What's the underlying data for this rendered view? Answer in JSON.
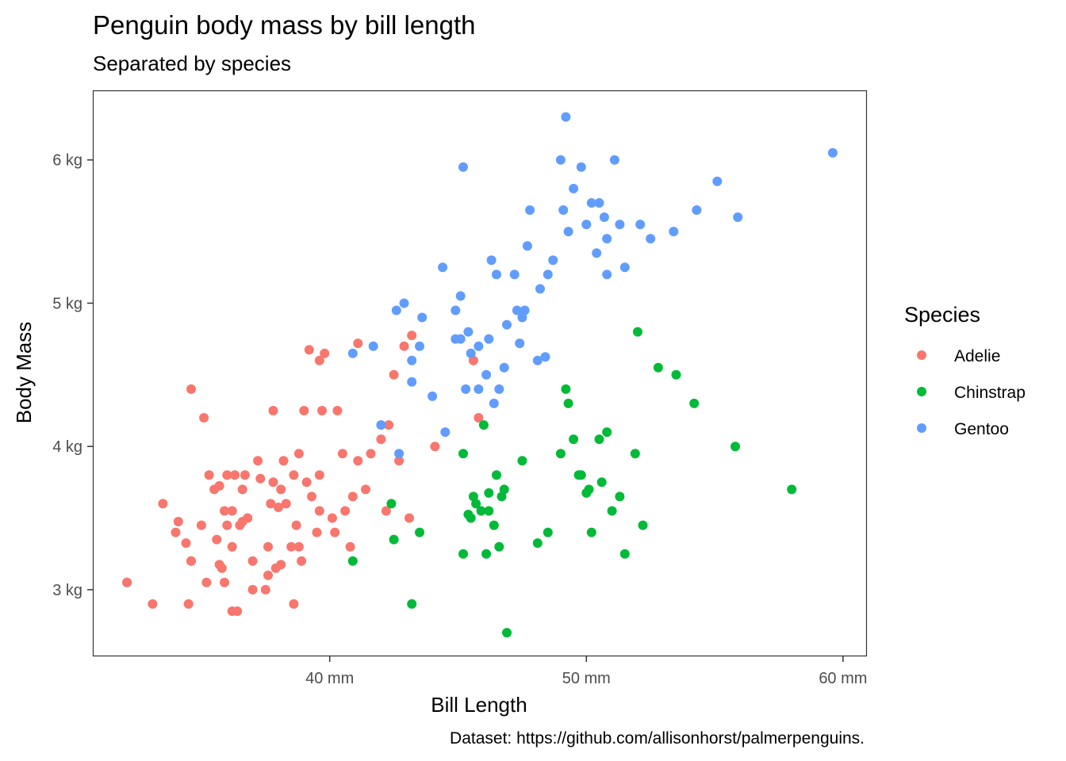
{
  "chart_data": {
    "type": "scatter",
    "title": "Penguin body mass by bill length",
    "subtitle": "Separated by species",
    "xlabel": "Bill Length",
    "ylabel": "Body Mass",
    "caption": "Dataset: https://github.com/allisonhorst/palmerpenguins.",
    "xlim": [
      30.8,
      60.9
    ],
    "ylim": [
      2.54,
      6.48
    ],
    "x_ticks": [
      40,
      50,
      60
    ],
    "x_tick_labels": [
      "40 mm",
      "50 mm",
      "60 mm"
    ],
    "y_ticks": [
      3,
      4,
      5,
      6
    ],
    "y_tick_labels": [
      "3 kg",
      "4 kg",
      "5 kg",
      "6 kg"
    ],
    "grid": false,
    "legend": {
      "title": "Species",
      "position": "right"
    },
    "series": [
      {
        "name": "Adelie",
        "color": "#F8766D",
        "points": [
          [
            32.1,
            3.05
          ],
          [
            33.1,
            2.9
          ],
          [
            33.5,
            3.6
          ],
          [
            34.0,
            3.4
          ],
          [
            34.1,
            3.475
          ],
          [
            34.4,
            3.325
          ],
          [
            34.5,
            2.9
          ],
          [
            34.6,
            3.2
          ],
          [
            34.6,
            4.4
          ],
          [
            35.0,
            3.45
          ],
          [
            35.1,
            4.2
          ],
          [
            35.2,
            3.05
          ],
          [
            35.3,
            3.8
          ],
          [
            35.5,
            3.7
          ],
          [
            35.6,
            3.35
          ],
          [
            35.7,
            3.175
          ],
          [
            35.8,
            3.15
          ],
          [
            35.9,
            3.55
          ],
          [
            35.9,
            3.05
          ],
          [
            36.0,
            3.8
          ],
          [
            36.0,
            3.45
          ],
          [
            36.2,
            3.3
          ],
          [
            36.2,
            3.55
          ],
          [
            36.3,
            3.8
          ],
          [
            36.4,
            2.85
          ],
          [
            36.5,
            3.45
          ],
          [
            36.6,
            3.7
          ],
          [
            36.7,
            3.8
          ],
          [
            36.8,
            3.5
          ],
          [
            37.0,
            3.0
          ],
          [
            37.2,
            3.9
          ],
          [
            37.3,
            3.775
          ],
          [
            37.5,
            3.0
          ],
          [
            37.6,
            3.3
          ],
          [
            37.7,
            3.6
          ],
          [
            37.8,
            3.75
          ],
          [
            37.8,
            4.25
          ],
          [
            37.9,
            3.15
          ],
          [
            38.1,
            3.7
          ],
          [
            38.1,
            3.175
          ],
          [
            38.2,
            3.9
          ],
          [
            38.3,
            3.6
          ],
          [
            38.5,
            3.3
          ],
          [
            38.6,
            3.8
          ],
          [
            38.6,
            2.9
          ],
          [
            38.7,
            3.45
          ],
          [
            38.8,
            3.95
          ],
          [
            38.9,
            3.2
          ],
          [
            39.0,
            4.25
          ],
          [
            39.1,
            3.75
          ],
          [
            39.2,
            4.675
          ],
          [
            39.3,
            3.65
          ],
          [
            39.5,
            3.4
          ],
          [
            39.6,
            3.55
          ],
          [
            39.6,
            4.6
          ],
          [
            39.7,
            4.25
          ],
          [
            39.8,
            4.65
          ],
          [
            40.1,
            3.5
          ],
          [
            40.2,
            3.4
          ],
          [
            40.3,
            4.25
          ],
          [
            40.6,
            3.55
          ],
          [
            40.8,
            3.3
          ],
          [
            40.9,
            3.65
          ],
          [
            41.1,
            3.9
          ],
          [
            41.1,
            4.72
          ],
          [
            41.4,
            3.7
          ],
          [
            41.6,
            3.95
          ],
          [
            42.0,
            4.05
          ],
          [
            42.2,
            3.55
          ],
          [
            42.3,
            4.15
          ],
          [
            42.5,
            4.5
          ],
          [
            42.7,
            3.9
          ],
          [
            42.9,
            4.7
          ],
          [
            43.1,
            3.5
          ],
          [
            43.2,
            4.775
          ],
          [
            44.1,
            4.0
          ],
          [
            45.6,
            4.6
          ],
          [
            45.8,
            4.2
          ],
          [
            32.1,
            3.05
          ],
          [
            34.6,
            3.2
          ],
          [
            35.7,
            3.725
          ],
          [
            36.2,
            2.85
          ],
          [
            36.6,
            3.475
          ],
          [
            37.0,
            3.2
          ],
          [
            37.6,
            3.1
          ],
          [
            38.0,
            3.575
          ],
          [
            38.8,
            3.3
          ],
          [
            39.6,
            3.8
          ],
          [
            40.5,
            3.95
          ]
        ]
      },
      {
        "name": "Chinstrap",
        "color": "#00BA38",
        "points": [
          [
            40.9,
            3.2
          ],
          [
            42.4,
            3.6
          ],
          [
            42.5,
            3.35
          ],
          [
            43.2,
            2.9
          ],
          [
            43.5,
            3.4
          ],
          [
            45.2,
            3.25
          ],
          [
            45.2,
            3.95
          ],
          [
            45.4,
            3.525
          ],
          [
            45.5,
            3.5
          ],
          [
            45.6,
            3.65
          ],
          [
            45.7,
            3.6
          ],
          [
            45.9,
            3.55
          ],
          [
            46.0,
            4.15
          ],
          [
            46.1,
            3.25
          ],
          [
            46.2,
            3.675
          ],
          [
            46.4,
            3.45
          ],
          [
            46.5,
            3.8
          ],
          [
            46.6,
            3.3
          ],
          [
            46.7,
            3.65
          ],
          [
            46.8,
            3.7
          ],
          [
            46.9,
            2.7
          ],
          [
            47.5,
            3.9
          ],
          [
            48.1,
            3.325
          ],
          [
            48.5,
            3.4
          ],
          [
            49.0,
            3.95
          ],
          [
            49.2,
            4.4
          ],
          [
            49.3,
            4.3
          ],
          [
            49.5,
            4.05
          ],
          [
            49.7,
            3.8
          ],
          [
            50.0,
            3.675
          ],
          [
            50.2,
            3.4
          ],
          [
            50.5,
            4.05
          ],
          [
            50.6,
            3.75
          ],
          [
            50.8,
            4.1
          ],
          [
            51.0,
            3.55
          ],
          [
            51.3,
            3.65
          ],
          [
            51.5,
            3.25
          ],
          [
            51.9,
            3.95
          ],
          [
            52.0,
            4.8
          ],
          [
            52.2,
            3.45
          ],
          [
            52.8,
            4.55
          ],
          [
            53.5,
            4.5
          ],
          [
            54.2,
            4.3
          ],
          [
            55.8,
            4.0
          ],
          [
            58.0,
            3.7
          ],
          [
            46.2,
            3.55
          ],
          [
            49.8,
            3.8
          ],
          [
            50.1,
            3.7
          ]
        ]
      },
      {
        "name": "Gentoo",
        "color": "#619CFF",
        "points": [
          [
            40.9,
            4.65
          ],
          [
            41.7,
            4.7
          ],
          [
            42.0,
            4.15
          ],
          [
            42.6,
            4.95
          ],
          [
            42.7,
            3.95
          ],
          [
            42.9,
            5.0
          ],
          [
            43.2,
            4.45
          ],
          [
            43.5,
            4.7
          ],
          [
            43.6,
            4.9
          ],
          [
            44.0,
            4.35
          ],
          [
            44.4,
            5.25
          ],
          [
            44.5,
            4.1
          ],
          [
            44.9,
            4.75
          ],
          [
            45.1,
            5.05
          ],
          [
            45.2,
            5.95
          ],
          [
            45.3,
            4.4
          ],
          [
            45.4,
            4.8
          ],
          [
            45.5,
            4.65
          ],
          [
            45.8,
            4.7
          ],
          [
            46.1,
            4.5
          ],
          [
            46.2,
            4.75
          ],
          [
            46.4,
            4.3
          ],
          [
            46.5,
            5.2
          ],
          [
            46.6,
            4.4
          ],
          [
            46.8,
            4.55
          ],
          [
            47.2,
            5.2
          ],
          [
            47.4,
            4.72
          ],
          [
            47.5,
            4.9
          ],
          [
            47.7,
            5.4
          ],
          [
            47.8,
            5.65
          ],
          [
            48.1,
            4.6
          ],
          [
            48.2,
            5.1
          ],
          [
            48.5,
            5.2
          ],
          [
            48.7,
            5.3
          ],
          [
            49.0,
            6.0
          ],
          [
            49.1,
            5.65
          ],
          [
            49.2,
            6.3
          ],
          [
            49.5,
            5.8
          ],
          [
            49.8,
            5.95
          ],
          [
            50.0,
            5.55
          ],
          [
            50.2,
            5.7
          ],
          [
            50.4,
            5.35
          ],
          [
            50.5,
            5.7
          ],
          [
            50.8,
            5.45
          ],
          [
            51.1,
            6.0
          ],
          [
            51.3,
            5.55
          ],
          [
            51.5,
            5.25
          ],
          [
            52.1,
            5.55
          ],
          [
            52.5,
            5.45
          ],
          [
            53.4,
            5.5
          ],
          [
            54.3,
            5.65
          ],
          [
            55.1,
            5.85
          ],
          [
            55.9,
            5.6
          ],
          [
            59.6,
            6.05
          ],
          [
            43.2,
            4.6
          ],
          [
            44.9,
            4.95
          ],
          [
            45.8,
            4.4
          ],
          [
            46.9,
            4.85
          ],
          [
            47.3,
            4.95
          ],
          [
            48.4,
            4.625
          ],
          [
            49.3,
            5.5
          ],
          [
            50.7,
            5.6
          ],
          [
            50.8,
            5.2
          ],
          [
            45.1,
            4.75
          ],
          [
            46.3,
            5.3
          ],
          [
            47.6,
            4.95
          ]
        ]
      }
    ]
  }
}
